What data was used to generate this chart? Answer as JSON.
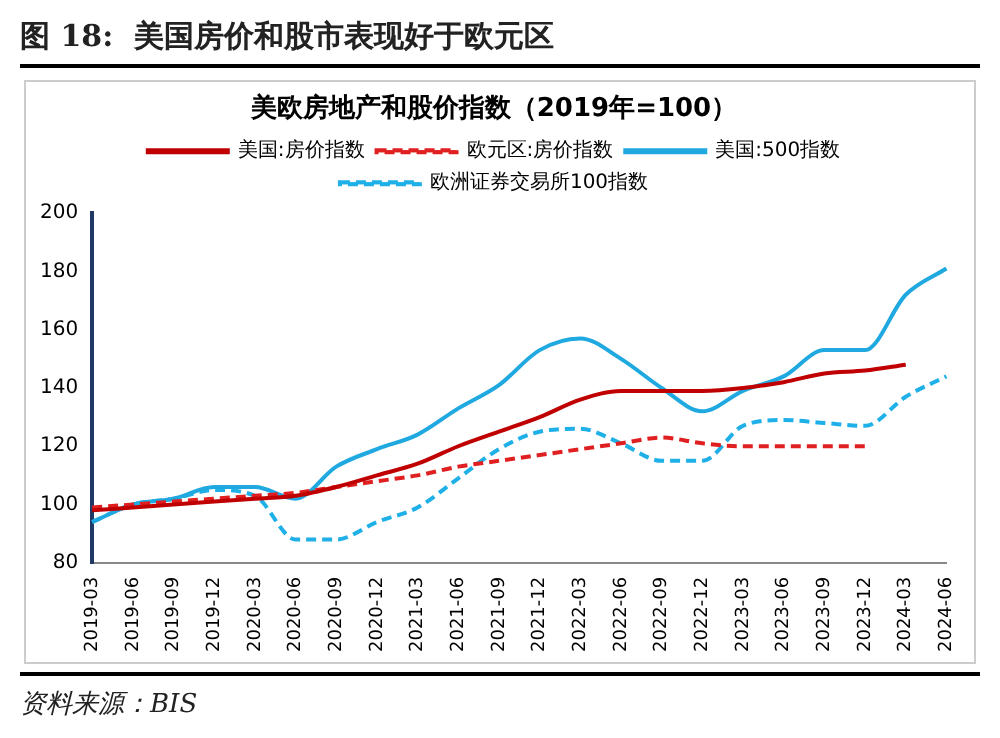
{
  "chart_data": {
    "type": "line",
    "title": "图 18:  美国房价和股市表现好于欧元区",
    "subtitle": "美欧房地产和股价指数（2019年=100）",
    "categories": [
      "2019-03",
      "2019-06",
      "2019-09",
      "2019-12",
      "2020-03",
      "2020-06",
      "2020-09",
      "2020-12",
      "2021-03",
      "2021-06",
      "2021-09",
      "2021-12",
      "2022-03",
      "2022-06",
      "2022-09",
      "2022-12",
      "2023-03",
      "2023-06",
      "2023-09",
      "2023-12",
      "2024-03",
      "2024-06"
    ],
    "series": [
      {
        "name": "美国:房价指数",
        "color": "#c00000",
        "line_style": "solid",
        "values": [
          98,
          99,
          100,
          101,
          102,
          103,
          106,
          110,
          114,
          120,
          125,
          130,
          136,
          139,
          139,
          139,
          140,
          142,
          145,
          146,
          148,
          null
        ]
      },
      {
        "name": "欧元区:房价指数",
        "color": "#e02020",
        "line_style": "dashed",
        "values": [
          99,
          100,
          101,
          102,
          103,
          104,
          106,
          108,
          110,
          113,
          115,
          117,
          119,
          121,
          123,
          121,
          120,
          120,
          120,
          120,
          null,
          null
        ]
      },
      {
        "name": "美国:500指数",
        "color": "#1fa9e0",
        "line_style": "solid",
        "values": [
          94,
          100,
          102,
          106,
          106,
          102,
          113,
          119,
          124,
          133,
          141,
          153,
          157,
          150,
          140,
          132,
          139,
          144,
          153,
          153,
          172,
          181
        ]
      },
      {
        "name": "欧洲证券交易所100指数",
        "color": "#1fb0e8",
        "line_style": "dashed",
        "values": [
          94,
          100,
          102,
          105,
          103,
          88,
          88,
          94,
          99,
          109,
          119,
          125,
          126,
          121,
          115,
          115,
          127,
          129,
          128,
          127,
          137,
          144
        ]
      }
    ],
    "ylim": [
      80,
      200
    ],
    "yticks": [
      80,
      100,
      120,
      140,
      160,
      180,
      200
    ],
    "grid": false,
    "legend": "top",
    "marker": "none",
    "annotations": [
      "资料来源：BIS"
    ]
  }
}
